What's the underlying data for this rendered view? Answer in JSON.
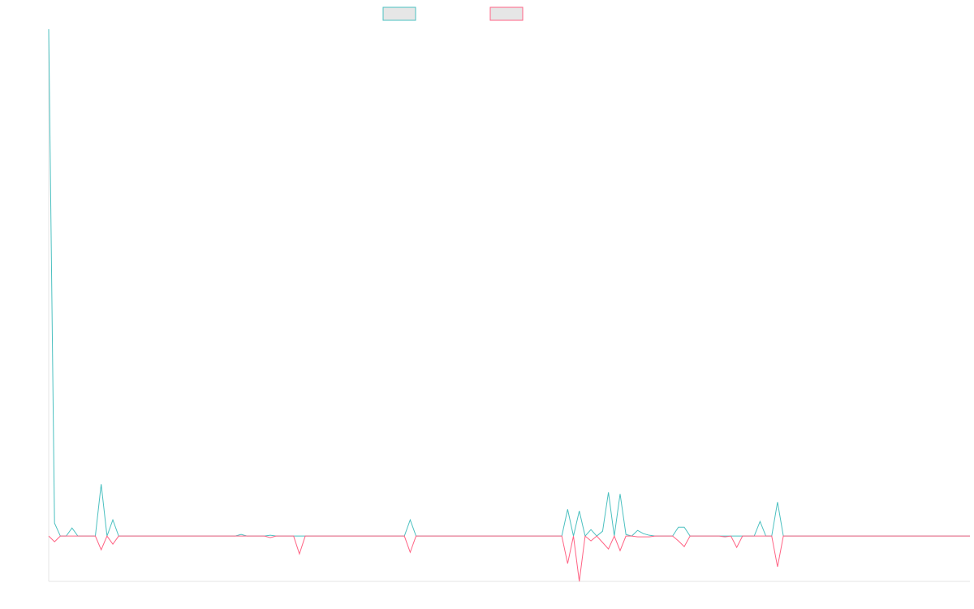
{
  "colors": {
    "series_a": "#4bc0c0",
    "series_b": "#ff6384",
    "legend_fill": "#e6e6e6",
    "axis": "#e5e5e5"
  },
  "chart_data": {
    "type": "line",
    "title": "",
    "xlabel": "",
    "ylabel": "",
    "legend": "top-center",
    "grid": false,
    "ylim": [
      -56,
      626
    ],
    "series": [
      {
        "color": "#4bc0c0",
        "values": [
          626,
          16,
          0,
          0,
          10,
          0,
          0,
          0,
          0,
          64,
          0,
          20,
          0,
          0,
          0,
          0,
          0,
          0,
          0,
          0,
          0,
          0,
          0,
          0,
          0,
          0,
          0,
          0,
          0,
          0,
          0,
          0,
          0,
          2,
          0,
          0,
          0,
          0,
          1,
          0,
          0,
          0,
          0,
          0,
          0,
          0,
          0,
          0,
          0,
          0,
          0,
          0,
          0,
          0,
          0,
          0,
          0,
          0,
          0,
          0,
          0,
          0,
          20,
          0,
          0,
          0,
          0,
          0,
          0,
          0,
          0,
          0,
          0,
          0,
          0,
          0,
          0,
          0,
          0,
          0,
          0,
          0,
          0,
          0,
          0,
          0,
          0,
          0,
          0,
          33,
          0,
          31,
          0,
          8,
          0,
          6,
          54,
          0,
          52,
          2,
          0,
          7,
          3,
          1,
          0,
          0,
          0,
          0,
          11,
          11,
          0,
          0,
          0,
          0,
          0,
          0,
          0,
          0,
          0,
          0,
          0,
          0,
          18,
          0,
          0,
          42,
          0,
          0,
          0,
          0,
          0,
          0,
          0,
          0,
          0,
          0,
          0,
          0,
          0,
          0,
          0,
          0,
          0,
          0,
          0,
          0,
          0,
          0,
          0,
          0,
          0,
          0,
          0,
          0,
          0,
          0,
          0,
          0,
          0
        ]
      },
      {
        "color": "#ff6384",
        "values": [
          0,
          -7,
          0,
          0,
          0,
          0,
          0,
          0,
          0,
          -17,
          0,
          -10,
          0,
          0,
          0,
          0,
          0,
          0,
          0,
          0,
          0,
          0,
          0,
          0,
          0,
          0,
          0,
          0,
          0,
          0,
          0,
          0,
          0,
          0,
          0,
          0,
          0,
          0,
          -2,
          0,
          0,
          0,
          0,
          -22,
          0,
          0,
          0,
          0,
          0,
          0,
          0,
          0,
          0,
          0,
          0,
          0,
          0,
          0,
          0,
          0,
          0,
          0,
          -20,
          0,
          0,
          0,
          0,
          0,
          0,
          0,
          0,
          0,
          0,
          0,
          0,
          0,
          0,
          0,
          0,
          0,
          0,
          0,
          0,
          0,
          0,
          0,
          0,
          0,
          0,
          -34,
          0,
          -56,
          0,
          -6,
          0,
          -8,
          -16,
          0,
          -18,
          0,
          0,
          -1,
          -1,
          -1,
          0,
          0,
          0,
          0,
          -6,
          -13,
          0,
          0,
          0,
          0,
          0,
          0,
          -1,
          0,
          -14,
          0,
          0,
          0,
          0,
          0,
          0,
          -38,
          0,
          0,
          0,
          0,
          0,
          0,
          0,
          0,
          0,
          0,
          0,
          0,
          0,
          0,
          0,
          0,
          0,
          0,
          0,
          0,
          0,
          0,
          0,
          0,
          0,
          0,
          0,
          0,
          0,
          0,
          0,
          0,
          0
        ]
      }
    ]
  }
}
